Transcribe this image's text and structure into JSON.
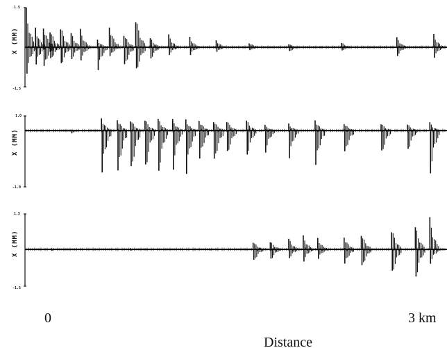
{
  "chart_data": [
    {
      "type": "bar",
      "panel": 1,
      "ylabel": "X (MM)",
      "ytick_top": "1.5",
      "ytick_bottom": "-1.5",
      "ylim": [
        -1.5,
        1.5
      ],
      "x_range_km": [
        0,
        3.2
      ],
      "signal": [
        {
          "x": 0.01,
          "peak_up": 1.5,
          "peak_down": -1.0
        },
        {
          "x": 0.08,
          "peak_up": 0.8,
          "peak_down": -0.7
        },
        {
          "x": 0.14,
          "peak_up": 0.9,
          "peak_down": -0.9
        },
        {
          "x": 0.19,
          "peak_up": 0.8,
          "peak_down": -0.6
        },
        {
          "x": 0.27,
          "peak_up": 0.9,
          "peak_down": -0.8
        },
        {
          "x": 0.35,
          "peak_up": 0.6,
          "peak_down": -0.5
        },
        {
          "x": 0.42,
          "peak_up": 0.7,
          "peak_down": -0.5
        },
        {
          "x": 0.55,
          "peak_up": 0.3,
          "peak_down": -0.9
        },
        {
          "x": 0.64,
          "peak_up": 0.9,
          "peak_down": -0.4
        },
        {
          "x": 0.75,
          "peak_up": 0.6,
          "peak_down": -0.9
        },
        {
          "x": 0.84,
          "peak_up": 1.3,
          "peak_down": -1.1
        },
        {
          "x": 0.95,
          "peak_up": 0.4,
          "peak_down": -0.5
        },
        {
          "x": 1.09,
          "peak_up": 0.5,
          "peak_down": -0.3
        },
        {
          "x": 1.25,
          "peak_up": 0.4,
          "peak_down": -0.3
        },
        {
          "x": 1.45,
          "peak_up": 0.3,
          "peak_down": -0.2
        },
        {
          "x": 1.7,
          "peak_up": 0.2,
          "peak_down": -0.15
        },
        {
          "x": 2.0,
          "peak_up": 0.15,
          "peak_down": -0.2
        },
        {
          "x": 2.4,
          "peak_up": 0.2,
          "peak_down": -0.15
        },
        {
          "x": 2.82,
          "peak_up": 0.4,
          "peak_down": -0.35
        },
        {
          "x": 3.1,
          "peak_up": 0.5,
          "peak_down": -0.4
        }
      ]
    },
    {
      "type": "bar",
      "panel": 2,
      "ylabel": "X (MM)",
      "ytick_top": "1.0",
      "ytick_bottom": "-1.0",
      "ylim": [
        -1.0,
        1.0
      ],
      "x_range_km": [
        0,
        3.2
      ],
      "signal": [
        {
          "x": 0.35,
          "peak_up": 0.05,
          "peak_down": -0.05
        },
        {
          "x": 0.58,
          "peak_up": 0.9,
          "peak_down": -0.8
        },
        {
          "x": 0.7,
          "peak_up": 0.9,
          "peak_down": -0.9
        },
        {
          "x": 0.8,
          "peak_up": 0.9,
          "peak_down": -0.9
        },
        {
          "x": 0.91,
          "peak_up": 0.9,
          "peak_down": -0.8
        },
        {
          "x": 1.01,
          "peak_up": 0.9,
          "peak_down": -0.8
        },
        {
          "x": 1.12,
          "peak_up": 0.8,
          "peak_down": -0.7
        },
        {
          "x": 1.22,
          "peak_up": 0.8,
          "peak_down": -0.8
        },
        {
          "x": 1.32,
          "peak_up": 0.8,
          "peak_down": -0.6
        },
        {
          "x": 1.43,
          "peak_up": 0.8,
          "peak_down": -0.7
        },
        {
          "x": 1.53,
          "peak_up": 0.8,
          "peak_down": -0.5
        },
        {
          "x": 1.68,
          "peak_up": 0.8,
          "peak_down": -0.5
        },
        {
          "x": 1.82,
          "peak_up": 0.4,
          "peak_down": -0.4
        },
        {
          "x": 2.0,
          "peak_up": 0.5,
          "peak_down": -0.5
        },
        {
          "x": 2.2,
          "peak_up": 0.8,
          "peak_down": -0.7
        },
        {
          "x": 2.42,
          "peak_up": 0.6,
          "peak_down": -0.5
        },
        {
          "x": 2.7,
          "peak_up": 0.6,
          "peak_down": -0.5
        },
        {
          "x": 2.9,
          "peak_up": 0.5,
          "peak_down": -0.4
        },
        {
          "x": 3.07,
          "peak_up": 0.6,
          "peak_down": -0.8
        }
      ]
    },
    {
      "type": "bar",
      "panel": 3,
      "ylabel": "X (MM)",
      "ytick_top": "1.5",
      "ytick_bottom": "-1.5",
      "ylim": [
        -1.5,
        1.5
      ],
      "x_range_km": [
        0,
        3.2
      ],
      "signal": [
        {
          "x": 0.2,
          "peak_up": 0.05,
          "peak_down": -0.05
        },
        {
          "x": 0.8,
          "peak_up": 0.05,
          "peak_down": -0.05
        },
        {
          "x": 1.4,
          "peak_up": 0.05,
          "peak_down": -0.05
        },
        {
          "x": 1.73,
          "peak_up": 0.4,
          "peak_down": -0.6
        },
        {
          "x": 1.86,
          "peak_up": 0.4,
          "peak_down": -0.5
        },
        {
          "x": 2.0,
          "peak_up": 0.5,
          "peak_down": -0.4
        },
        {
          "x": 2.11,
          "peak_up": 0.6,
          "peak_down": -0.5
        },
        {
          "x": 2.22,
          "peak_up": 0.5,
          "peak_down": -0.4
        },
        {
          "x": 2.42,
          "peak_up": 0.6,
          "peak_down": -0.7
        },
        {
          "x": 2.55,
          "peak_up": 0.8,
          "peak_down": -0.9
        },
        {
          "x": 2.78,
          "peak_up": 1.0,
          "peak_down": -1.2
        },
        {
          "x": 2.96,
          "peak_up": 1.1,
          "peak_down": -1.3
        },
        {
          "x": 3.07,
          "peak_up": 1.4,
          "peak_down": -0.6
        }
      ]
    }
  ],
  "x_axis": {
    "start_label": "0",
    "end_label": "3 km",
    "label": "Distance"
  },
  "color": "#111111"
}
